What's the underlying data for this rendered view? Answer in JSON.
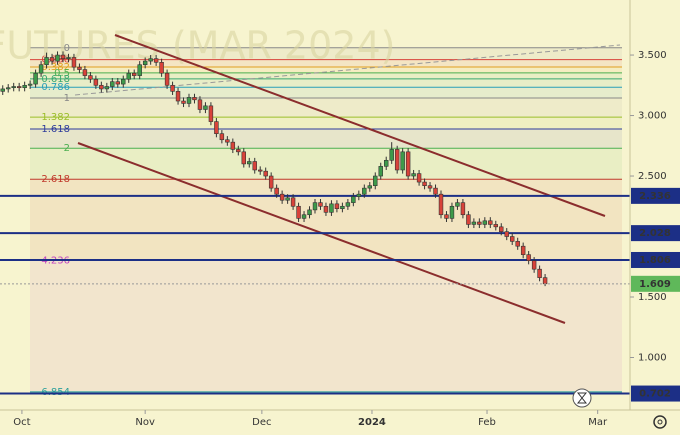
{
  "chart_data": {
    "type": "candlestick",
    "watermark": "FUTURES (MAR 2024)",
    "ylim": [
      0.566,
      3.955
    ],
    "yticks": [
      {
        "value": 3.5,
        "label": "3.500"
      },
      {
        "value": 3.0,
        "label": "3.000"
      },
      {
        "value": 2.5,
        "label": "2.500"
      },
      {
        "value": 1.5,
        "label": "1.500"
      },
      {
        "value": 1.0,
        "label": "1.000"
      }
    ],
    "xlim": [
      -0.5,
      114.5
    ],
    "xticks": [
      {
        "value": 3.5,
        "label": "Oct"
      },
      {
        "value": 26,
        "label": "Nov"
      },
      {
        "value": 47.3,
        "label": "Dec"
      },
      {
        "value": 67.4,
        "label": "2024"
      },
      {
        "value": 88.4,
        "label": "Feb"
      },
      {
        "value": 108.6,
        "label": "Mar"
      }
    ],
    "up_color": "#3d9a4a",
    "down_color": "#d8433a",
    "candles": [
      [
        3.2,
        3.25,
        3.17,
        3.22
      ],
      [
        3.22,
        3.26,
        3.19,
        3.23
      ],
      [
        3.23,
        3.27,
        3.2,
        3.24
      ],
      [
        3.24,
        3.27,
        3.2,
        3.23
      ],
      [
        3.23,
        3.28,
        3.2,
        3.25
      ],
      [
        3.25,
        3.29,
        3.22,
        3.26
      ],
      [
        3.26,
        3.38,
        3.23,
        3.35
      ],
      [
        3.35,
        3.45,
        3.32,
        3.42
      ],
      [
        3.42,
        3.52,
        3.39,
        3.48
      ],
      [
        3.48,
        3.51,
        3.42,
        3.45
      ],
      [
        3.45,
        3.53,
        3.42,
        3.5
      ],
      [
        3.5,
        3.53,
        3.44,
        3.47
      ],
      [
        3.47,
        3.51,
        3.44,
        3.48
      ],
      [
        3.48,
        3.51,
        3.37,
        3.4
      ],
      [
        3.4,
        3.43,
        3.35,
        3.38
      ],
      [
        3.38,
        3.41,
        3.3,
        3.33
      ],
      [
        3.33,
        3.36,
        3.27,
        3.3
      ],
      [
        3.3,
        3.33,
        3.22,
        3.25
      ],
      [
        3.25,
        3.28,
        3.19,
        3.22
      ],
      [
        3.22,
        3.27,
        3.19,
        3.24
      ],
      [
        3.24,
        3.31,
        3.21,
        3.28
      ],
      [
        3.28,
        3.31,
        3.23,
        3.26
      ],
      [
        3.26,
        3.33,
        3.23,
        3.3
      ],
      [
        3.3,
        3.38,
        3.27,
        3.35
      ],
      [
        3.35,
        3.38,
        3.3,
        3.33
      ],
      [
        3.33,
        3.45,
        3.3,
        3.42
      ],
      [
        3.42,
        3.48,
        3.39,
        3.45
      ],
      [
        3.45,
        3.5,
        3.42,
        3.47
      ],
      [
        3.47,
        3.5,
        3.41,
        3.44
      ],
      [
        3.44,
        3.47,
        3.32,
        3.35
      ],
      [
        3.35,
        3.38,
        3.22,
        3.25
      ],
      [
        3.25,
        3.28,
        3.17,
        3.2
      ],
      [
        3.2,
        3.23,
        3.09,
        3.12
      ],
      [
        3.12,
        3.15,
        3.07,
        3.1
      ],
      [
        3.1,
        3.18,
        3.07,
        3.15
      ],
      [
        3.15,
        3.18,
        3.1,
        3.13
      ],
      [
        3.13,
        3.16,
        3.02,
        3.05
      ],
      [
        3.05,
        3.11,
        3.02,
        3.08
      ],
      [
        3.08,
        3.11,
        2.92,
        2.95
      ],
      [
        2.95,
        2.98,
        2.82,
        2.85
      ],
      [
        2.85,
        2.88,
        2.77,
        2.8
      ],
      [
        2.8,
        2.83,
        2.75,
        2.78
      ],
      [
        2.78,
        2.81,
        2.69,
        2.72
      ],
      [
        2.72,
        2.75,
        2.67,
        2.7
      ],
      [
        2.7,
        2.73,
        2.57,
        2.6
      ],
      [
        2.6,
        2.65,
        2.57,
        2.62
      ],
      [
        2.62,
        2.65,
        2.52,
        2.55
      ],
      [
        2.55,
        2.58,
        2.51,
        2.54
      ],
      [
        2.54,
        2.57,
        2.47,
        2.5
      ],
      [
        2.5,
        2.53,
        2.37,
        2.4
      ],
      [
        2.4,
        2.43,
        2.32,
        2.35
      ],
      [
        2.35,
        2.38,
        2.27,
        2.3
      ],
      [
        2.3,
        2.35,
        2.27,
        2.32
      ],
      [
        2.32,
        2.35,
        2.22,
        2.25
      ],
      [
        2.25,
        2.28,
        2.12,
        2.15
      ],
      [
        2.15,
        2.21,
        2.12,
        2.18
      ],
      [
        2.18,
        2.25,
        2.15,
        2.22
      ],
      [
        2.22,
        2.31,
        2.19,
        2.28
      ],
      [
        2.28,
        2.31,
        2.22,
        2.25
      ],
      [
        2.25,
        2.28,
        2.17,
        2.2
      ],
      [
        2.2,
        2.3,
        2.17,
        2.27
      ],
      [
        2.27,
        2.3,
        2.2,
        2.23
      ],
      [
        2.23,
        2.28,
        2.2,
        2.25
      ],
      [
        2.25,
        2.31,
        2.22,
        2.28
      ],
      [
        2.28,
        2.36,
        2.25,
        2.33
      ],
      [
        2.33,
        2.38,
        2.3,
        2.35
      ],
      [
        2.35,
        2.43,
        2.32,
        2.4
      ],
      [
        2.4,
        2.45,
        2.37,
        2.42
      ],
      [
        2.42,
        2.53,
        2.39,
        2.5
      ],
      [
        2.5,
        2.61,
        2.47,
        2.58
      ],
      [
        2.58,
        2.66,
        2.55,
        2.63
      ],
      [
        2.63,
        2.78,
        2.6,
        2.72
      ],
      [
        2.72,
        2.75,
        2.52,
        2.55
      ],
      [
        2.55,
        2.73,
        2.52,
        2.7
      ],
      [
        2.7,
        2.73,
        2.47,
        2.5
      ],
      [
        2.5,
        2.55,
        2.47,
        2.52
      ],
      [
        2.52,
        2.55,
        2.42,
        2.45
      ],
      [
        2.45,
        2.48,
        2.39,
        2.42
      ],
      [
        2.42,
        2.45,
        2.37,
        2.4
      ],
      [
        2.4,
        2.43,
        2.32,
        2.35
      ],
      [
        2.35,
        2.38,
        2.15,
        2.18
      ],
      [
        2.18,
        2.21,
        2.12,
        2.15
      ],
      [
        2.15,
        2.28,
        2.12,
        2.25
      ],
      [
        2.25,
        2.31,
        2.22,
        2.28
      ],
      [
        2.28,
        2.31,
        2.15,
        2.18
      ],
      [
        2.18,
        2.21,
        2.07,
        2.1
      ],
      [
        2.1,
        2.15,
        2.07,
        2.12
      ],
      [
        2.12,
        2.15,
        2.07,
        2.1
      ],
      [
        2.1,
        2.16,
        2.07,
        2.13
      ],
      [
        2.13,
        2.16,
        2.07,
        2.1
      ],
      [
        2.1,
        2.13,
        2.05,
        2.08
      ],
      [
        2.08,
        2.11,
        2.01,
        2.04
      ],
      [
        2.04,
        2.07,
        1.97,
        2.0
      ],
      [
        2.0,
        2.03,
        1.93,
        1.96
      ],
      [
        1.96,
        1.99,
        1.89,
        1.92
      ],
      [
        1.92,
        1.95,
        1.82,
        1.85
      ],
      [
        1.85,
        1.88,
        1.77,
        1.8
      ],
      [
        1.8,
        1.83,
        1.7,
        1.73
      ],
      [
        1.73,
        1.76,
        1.63,
        1.66
      ],
      [
        1.66,
        1.69,
        1.59,
        1.609
      ]
    ],
    "last_price_color": "#5fb85a",
    "hlines": [
      2.336,
      2.028,
      1.806,
      0.702
    ],
    "hline_color": "#1c2f86",
    "fib": {
      "start": 3.56,
      "end": 3.145,
      "levels": [
        0,
        0.236,
        0.382,
        0.5,
        0.618,
        0.786,
        1,
        1.382,
        1.618,
        2,
        2.618,
        4.236,
        6.854
      ],
      "colors": [
        "#888888",
        "#d8433a",
        "#e0a020",
        "#4caf50",
        "#3aa870",
        "#2a9fb8",
        "#888888",
        "#9bbd2a",
        "#2e3b9a",
        "#4caf50",
        "#c0392b",
        "#c040c0",
        "#2a9f9a"
      ]
    }
  }
}
